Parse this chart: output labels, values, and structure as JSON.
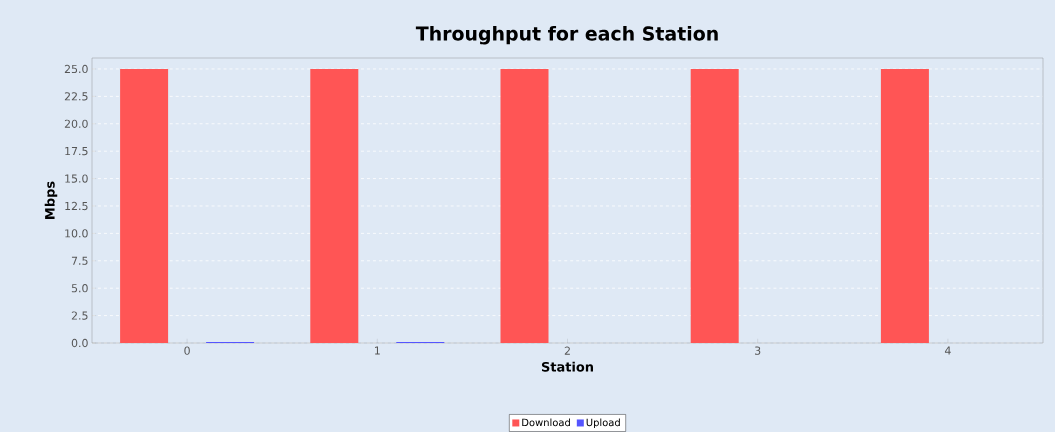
{
  "chart_data": {
    "type": "bar",
    "title": "Throughput for each Station",
    "xlabel": "Station",
    "ylabel": "Mbps",
    "categories": [
      "0",
      "1",
      "2",
      "3",
      "4"
    ],
    "series": [
      {
        "name": "Download",
        "color": "#ff5555",
        "values": [
          25,
          25,
          25,
          25,
          25
        ]
      },
      {
        "name": "Upload",
        "color": "#5555ff",
        "values": [
          0.1,
          0.1,
          0,
          0,
          0
        ]
      }
    ],
    "ylim": [
      0,
      26
    ],
    "yticks": [
      {
        "value": 0,
        "label": "0.0"
      },
      {
        "value": 2.5,
        "label": "2.5"
      },
      {
        "value": 5,
        "label": "5.0"
      },
      {
        "value": 7.5,
        "label": "7.5"
      },
      {
        "value": 10,
        "label": "10.0"
      },
      {
        "value": 12.5,
        "label": "12.5"
      },
      {
        "value": 15,
        "label": "15.0"
      },
      {
        "value": 17.5,
        "label": "17.5"
      },
      {
        "value": 20,
        "label": "20.0"
      },
      {
        "value": 22.5,
        "label": "22.5"
      },
      {
        "value": 25,
        "label": "25.0"
      }
    ],
    "grid": "y",
    "legend": "bottom"
  }
}
